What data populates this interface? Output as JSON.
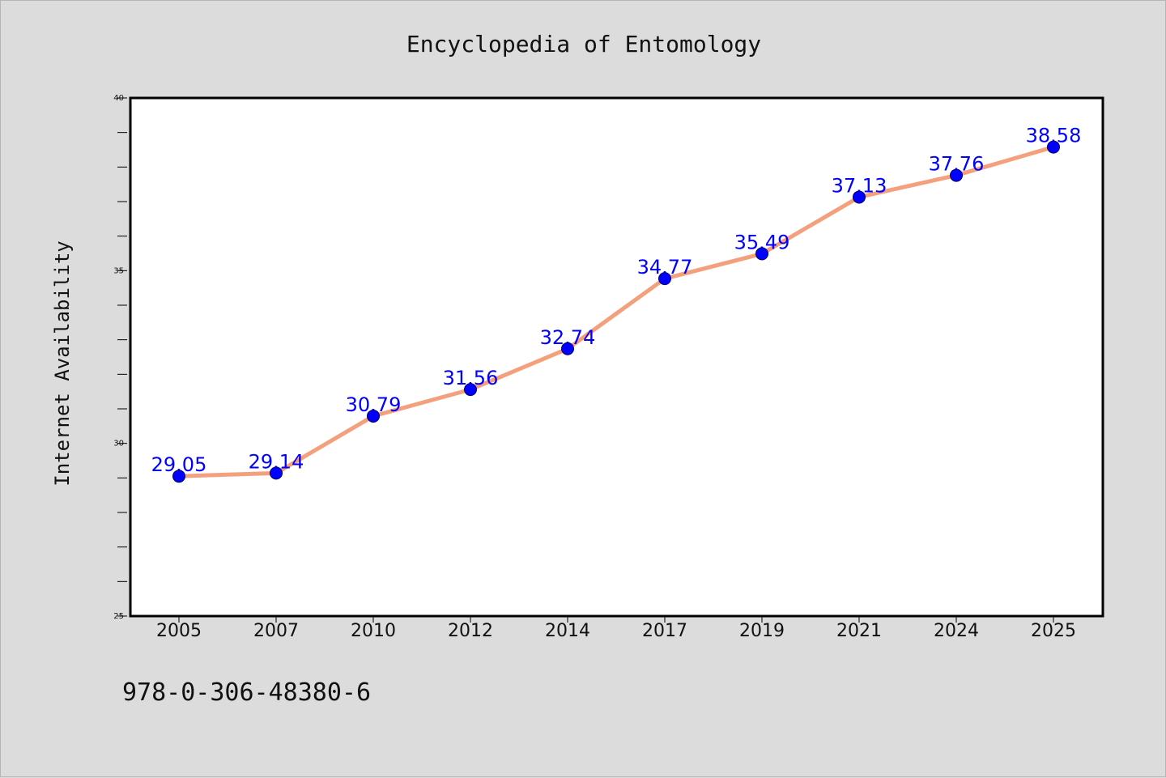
{
  "chart_data": {
    "type": "line",
    "title": "Encyclopedia of Entomology",
    "xlabel": "",
    "ylabel": "Internet Availability",
    "categories": [
      "2005",
      "2007",
      "2010",
      "2012",
      "2014",
      "2017",
      "2019",
      "2021",
      "2024",
      "2025"
    ],
    "series": [
      {
        "values": [
          29.05,
          29.14,
          30.79,
          31.56,
          32.74,
          34.77,
          35.49,
          37.13,
          37.76,
          38.58
        ],
        "labels": [
          "29.05",
          "29.14",
          "30.79",
          "31.56",
          "32.74",
          "34.77",
          "35.49",
          "37.13",
          "37.76",
          "38.58"
        ]
      }
    ],
    "ylim": [
      25,
      40
    ],
    "yticks": [
      25,
      30,
      35,
      40
    ],
    "ytick_labels": [
      "25",
      "30",
      "35",
      "40"
    ],
    "y_minor_step": 1,
    "grid": false,
    "data_labels": true
  },
  "footer": {
    "text": "978-0-306-48380-6"
  },
  "colors": {
    "background": "#dcdcdc",
    "plot_background": "#ffffff",
    "line": "#f4a07d",
    "marker": "#0000ff",
    "marker_edge": "#000066",
    "data_label": "#0000ff",
    "axis": "#000000"
  }
}
